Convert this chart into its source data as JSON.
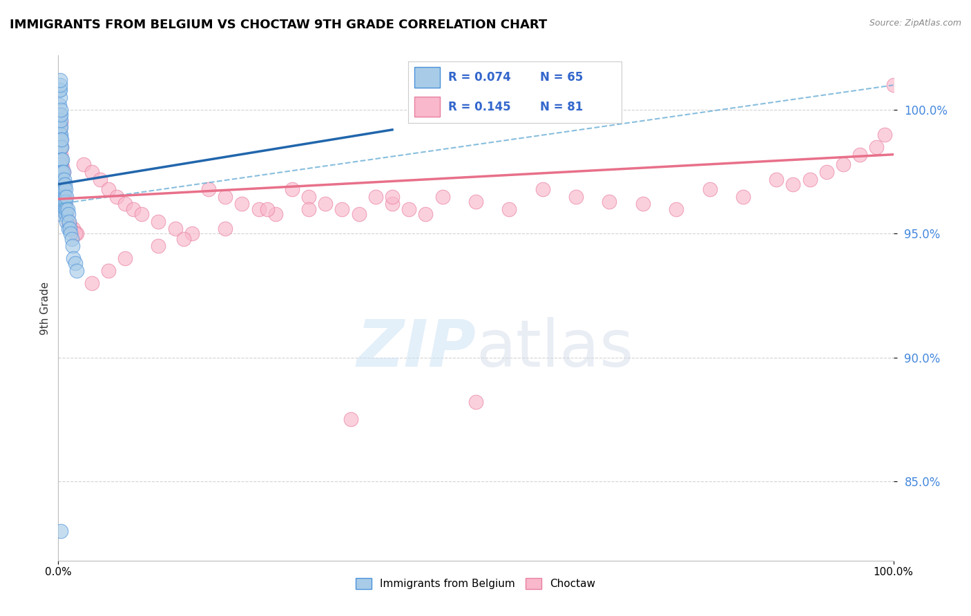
{
  "title": "IMMIGRANTS FROM BELGIUM VS CHOCTAW 9TH GRADE CORRELATION CHART",
  "source_text": "Source: ZipAtlas.com",
  "ylabel": "9th Grade",
  "x_min": 0.0,
  "x_max": 1.0,
  "y_min": 0.818,
  "y_max": 1.022,
  "legend_blue_label": "Immigrants from Belgium",
  "legend_pink_label": "Choctaw",
  "legend_blue_r": "R = 0.074",
  "legend_blue_n": "N = 65",
  "legend_pink_r": "R = 0.145",
  "legend_pink_n": "N = 81",
  "blue_face_color": "#a8cce8",
  "blue_edge_color": "#4a90d9",
  "pink_face_color": "#f9b8cb",
  "pink_edge_color": "#e87fa0",
  "blue_line_color": "#2166ac",
  "pink_line_color": "#e8708a",
  "dashed_line_color": "#6aaed6",
  "watermark_color": "#c8e0f4",
  "grid_color": "#c8c8c8",
  "ylabel_color": "#333333",
  "ytick_color": "#4488dd",
  "source_color": "#888888",
  "background_color": "#ffffff",
  "blue_scatter_x": [
    0.001,
    0.001,
    0.001,
    0.002,
    0.002,
    0.002,
    0.002,
    0.002,
    0.002,
    0.002,
    0.002,
    0.002,
    0.002,
    0.002,
    0.003,
    0.003,
    0.003,
    0.003,
    0.003,
    0.003,
    0.003,
    0.003,
    0.003,
    0.003,
    0.003,
    0.003,
    0.003,
    0.004,
    0.004,
    0.004,
    0.004,
    0.004,
    0.004,
    0.005,
    0.005,
    0.005,
    0.005,
    0.005,
    0.006,
    0.006,
    0.006,
    0.007,
    0.007,
    0.007,
    0.008,
    0.008,
    0.008,
    0.009,
    0.009,
    0.009,
    0.01,
    0.01,
    0.01,
    0.011,
    0.012,
    0.012,
    0.013,
    0.014,
    0.015,
    0.016,
    0.017,
    0.018,
    0.02,
    0.022,
    0.003
  ],
  "blue_scatter_y": [
    0.995,
    1.002,
    1.008,
    0.998,
    1.005,
    1.008,
    1.01,
    1.012,
    0.985,
    0.99,
    0.993,
    0.975,
    0.98,
    0.968,
    0.99,
    0.993,
    0.996,
    0.998,
    1.0,
    0.985,
    0.988,
    0.975,
    0.978,
    0.97,
    0.965,
    0.96,
    0.958,
    0.985,
    0.988,
    0.98,
    0.975,
    0.97,
    0.965,
    0.98,
    0.975,
    0.972,
    0.968,
    0.963,
    0.975,
    0.97,
    0.962,
    0.972,
    0.968,
    0.963,
    0.97,
    0.965,
    0.96,
    0.968,
    0.963,
    0.958,
    0.965,
    0.96,
    0.955,
    0.96,
    0.958,
    0.952,
    0.955,
    0.952,
    0.95,
    0.948,
    0.945,
    0.94,
    0.938,
    0.935,
    0.83
  ],
  "pink_scatter_x": [
    0.001,
    0.001,
    0.001,
    0.002,
    0.002,
    0.002,
    0.003,
    0.003,
    0.003,
    0.003,
    0.004,
    0.004,
    0.004,
    0.005,
    0.005,
    0.006,
    0.006,
    0.007,
    0.008,
    0.009,
    0.01,
    0.012,
    0.015,
    0.018,
    0.022,
    0.03,
    0.04,
    0.05,
    0.06,
    0.07,
    0.08,
    0.09,
    0.1,
    0.12,
    0.14,
    0.16,
    0.18,
    0.2,
    0.22,
    0.24,
    0.26,
    0.28,
    0.3,
    0.32,
    0.34,
    0.36,
    0.38,
    0.4,
    0.42,
    0.44,
    0.46,
    0.5,
    0.54,
    0.58,
    0.62,
    0.66,
    0.7,
    0.74,
    0.78,
    0.82,
    0.86,
    0.88,
    0.9,
    0.92,
    0.94,
    0.96,
    0.98,
    0.99,
    1.0,
    0.35,
    0.5,
    0.3,
    0.2,
    0.15,
    0.25,
    0.4,
    0.12,
    0.08,
    0.06,
    0.04,
    0.02
  ],
  "pink_scatter_y": [
    0.985,
    0.992,
    0.998,
    0.978,
    0.985,
    0.992,
    0.975,
    0.982,
    0.988,
    0.995,
    0.972,
    0.979,
    0.985,
    0.97,
    0.977,
    0.968,
    0.975,
    0.965,
    0.962,
    0.96,
    0.958,
    0.955,
    0.953,
    0.952,
    0.95,
    0.978,
    0.975,
    0.972,
    0.968,
    0.965,
    0.962,
    0.96,
    0.958,
    0.955,
    0.952,
    0.95,
    0.968,
    0.965,
    0.962,
    0.96,
    0.958,
    0.968,
    0.965,
    0.962,
    0.96,
    0.958,
    0.965,
    0.962,
    0.96,
    0.958,
    0.965,
    0.963,
    0.96,
    0.968,
    0.965,
    0.963,
    0.962,
    0.96,
    0.968,
    0.965,
    0.972,
    0.97,
    0.972,
    0.975,
    0.978,
    0.982,
    0.985,
    0.99,
    1.01,
    0.875,
    0.882,
    0.96,
    0.952,
    0.948,
    0.96,
    0.965,
    0.945,
    0.94,
    0.935,
    0.93,
    0.95
  ],
  "blue_solid_line_x": [
    0.0,
    0.4
  ],
  "blue_solid_line_y": [
    0.97,
    0.992
  ],
  "blue_dash_line_x": [
    0.0,
    1.0
  ],
  "blue_dash_line_y": [
    0.962,
    1.01
  ],
  "pink_solid_line_x": [
    0.0,
    1.0
  ],
  "pink_solid_line_y": [
    0.964,
    0.982
  ]
}
